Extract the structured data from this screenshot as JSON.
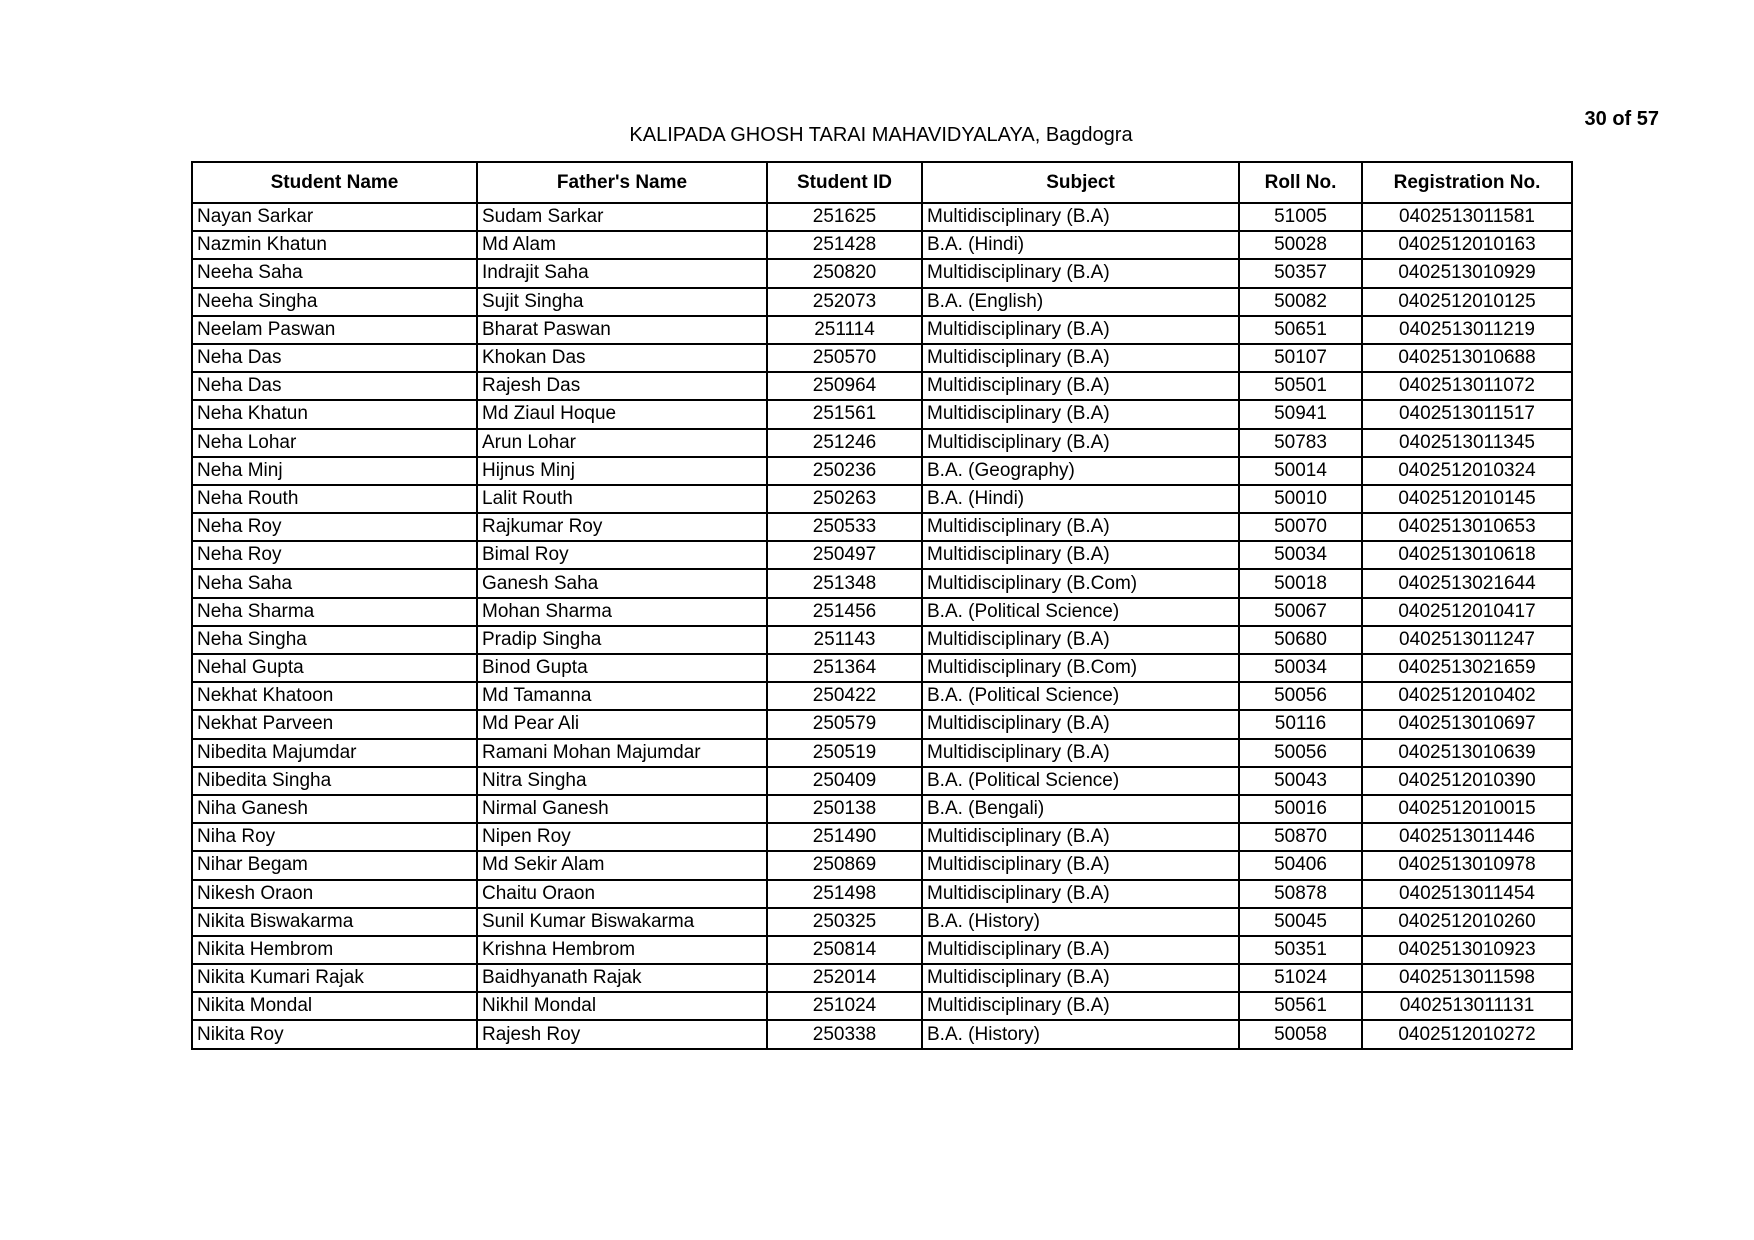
{
  "page_number": "30 of 57",
  "title": "KALIPADA GHOSH TARAI MAHAVIDYALAYA, Bagdogra",
  "columns": [
    "Student Name",
    "Father's Name",
    "Student ID",
    "Subject",
    "Roll No.",
    "Registration No."
  ],
  "rows": [
    [
      "Nayan Sarkar",
      "Sudam Sarkar",
      "251625",
      "Multidisciplinary (B.A)",
      "51005",
      "0402513011581"
    ],
    [
      "Nazmin Khatun",
      "Md Alam",
      "251428",
      "B.A. (Hindi)",
      "50028",
      "0402512010163"
    ],
    [
      "Neeha Saha",
      "Indrajit Saha",
      "250820",
      "Multidisciplinary (B.A)",
      "50357",
      "0402513010929"
    ],
    [
      "Neeha Singha",
      "Sujit Singha",
      "252073",
      "B.A. (English)",
      "50082",
      "0402512010125"
    ],
    [
      "Neelam Paswan",
      "Bharat Paswan",
      "251114",
      "Multidisciplinary (B.A)",
      "50651",
      "0402513011219"
    ],
    [
      "Neha Das",
      "Khokan Das",
      "250570",
      "Multidisciplinary (B.A)",
      "50107",
      "0402513010688"
    ],
    [
      "Neha Das",
      "Rajesh Das",
      "250964",
      "Multidisciplinary (B.A)",
      "50501",
      "0402513011072"
    ],
    [
      "Neha Khatun",
      "Md Ziaul Hoque",
      "251561",
      "Multidisciplinary (B.A)",
      "50941",
      "0402513011517"
    ],
    [
      "Neha Lohar",
      "Arun Lohar",
      "251246",
      "Multidisciplinary (B.A)",
      "50783",
      "0402513011345"
    ],
    [
      "Neha Minj",
      "Hijnus Minj",
      "250236",
      "B.A. (Geography)",
      "50014",
      "0402512010324"
    ],
    [
      "Neha Routh",
      "Lalit Routh",
      "250263",
      "B.A. (Hindi)",
      "50010",
      "0402512010145"
    ],
    [
      "Neha Roy",
      "Rajkumar Roy",
      "250533",
      "Multidisciplinary (B.A)",
      "50070",
      "0402513010653"
    ],
    [
      "Neha Roy",
      "Bimal  Roy",
      "250497",
      "Multidisciplinary (B.A)",
      "50034",
      "0402513010618"
    ],
    [
      "Neha Saha",
      "Ganesh Saha",
      "251348",
      "Multidisciplinary (B.Com)",
      "50018",
      "0402513021644"
    ],
    [
      "Neha Sharma",
      "Mohan Sharma",
      "251456",
      "B.A. (Political Science)",
      "50067",
      "0402512010417"
    ],
    [
      "Neha Singha",
      "Pradip Singha",
      "251143",
      "Multidisciplinary (B.A)",
      "50680",
      "0402513011247"
    ],
    [
      "Nehal Gupta",
      "Binod Gupta",
      "251364",
      "Multidisciplinary (B.Com)",
      "50034",
      "0402513021659"
    ],
    [
      "Nekhat Khatoon",
      "Md Tamanna",
      "250422",
      "B.A. (Political Science)",
      "50056",
      "0402512010402"
    ],
    [
      "Nekhat Parveen",
      "Md Pear Ali",
      "250579",
      "Multidisciplinary (B.A)",
      "50116",
      "0402513010697"
    ],
    [
      "Nibedita Majumdar",
      "Ramani Mohan Majumdar",
      "250519",
      "Multidisciplinary (B.A)",
      "50056",
      "0402513010639"
    ],
    [
      "Nibedita Singha",
      "Nitra Singha",
      "250409",
      "B.A. (Political Science)",
      "50043",
      "0402512010390"
    ],
    [
      "Niha Ganesh",
      "Nirmal Ganesh",
      "250138",
      "B.A. (Bengali)",
      "50016",
      "0402512010015"
    ],
    [
      "Niha Roy",
      "Nipen Roy",
      "251490",
      "Multidisciplinary (B.A)",
      "50870",
      "0402513011446"
    ],
    [
      "Nihar Begam",
      "Md Sekir Alam",
      "250869",
      "Multidisciplinary (B.A)",
      "50406",
      "0402513010978"
    ],
    [
      "Nikesh Oraon",
      "Chaitu Oraon",
      "251498",
      "Multidisciplinary (B.A)",
      "50878",
      "0402513011454"
    ],
    [
      "Nikita Biswakarma",
      "Sunil Kumar Biswakarma",
      "250325",
      "B.A. (History)",
      "50045",
      "0402512010260"
    ],
    [
      "Nikita Hembrom",
      "Krishna Hembrom",
      "250814",
      "Multidisciplinary (B.A)",
      "50351",
      "0402513010923"
    ],
    [
      "Nikita Kumari Rajak",
      "Baidhyanath Rajak",
      "252014",
      "Multidisciplinary (B.A)",
      "51024",
      "0402513011598"
    ],
    [
      "Nikita Mondal",
      "Nikhil Mondal",
      "251024",
      "Multidisciplinary (B.A)",
      "50561",
      "0402513011131"
    ],
    [
      "Nikita Roy",
      "Rajesh Roy",
      "250338",
      "B.A. (History)",
      "50058",
      "0402512010272"
    ]
  ]
}
